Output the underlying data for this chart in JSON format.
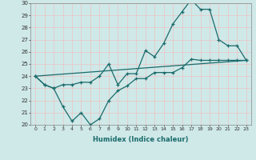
{
  "xlabel": "Humidex (Indice chaleur)",
  "xlim": [
    -0.5,
    23.5
  ],
  "ylim": [
    20,
    30
  ],
  "yticks": [
    20,
    21,
    22,
    23,
    24,
    25,
    26,
    27,
    28,
    29,
    30
  ],
  "xticks": [
    0,
    1,
    2,
    3,
    4,
    5,
    6,
    7,
    8,
    9,
    10,
    11,
    12,
    13,
    14,
    15,
    16,
    17,
    18,
    19,
    20,
    21,
    22,
    23
  ],
  "xtick_labels": [
    "0",
    "1",
    "2",
    "3",
    "4",
    "5",
    "6",
    "7",
    "8",
    "9",
    "10",
    "11",
    "12",
    "13",
    "14",
    "15",
    "16",
    "17",
    "18",
    "19",
    "20",
    "21",
    "22",
    "23"
  ],
  "bg_color": "#cfe8e8",
  "grid_color": "#e8c8c8",
  "line_color": "#1a6b6b",
  "line1_x": [
    0,
    1,
    2,
    3,
    4,
    5,
    6,
    7,
    8,
    9,
    10,
    11,
    12,
    13,
    14,
    15,
    16,
    17,
    18,
    19,
    20,
    21,
    22,
    23
  ],
  "line1_y": [
    24.0,
    23.3,
    23.0,
    23.3,
    23.3,
    23.5,
    23.5,
    24.0,
    25.0,
    23.3,
    24.2,
    24.2,
    26.1,
    25.6,
    26.7,
    28.3,
    29.3,
    30.3,
    29.5,
    29.5,
    27.0,
    26.5,
    26.5,
    25.3
  ],
  "line2_x": [
    0,
    1,
    2,
    3,
    4,
    5,
    6,
    7,
    8,
    9,
    10,
    11,
    12,
    13,
    14,
    15,
    16,
    17,
    18,
    19,
    20,
    21,
    22,
    23
  ],
  "line2_y": [
    24.0,
    23.3,
    23.0,
    21.5,
    20.3,
    21.0,
    20.0,
    20.5,
    22.0,
    22.8,
    23.2,
    23.8,
    23.8,
    24.3,
    24.3,
    24.3,
    24.7,
    25.4,
    25.3,
    25.3,
    25.3,
    25.3,
    25.3,
    25.3
  ],
  "line3_x": [
    0,
    23
  ],
  "line3_y": [
    24.0,
    25.3
  ]
}
